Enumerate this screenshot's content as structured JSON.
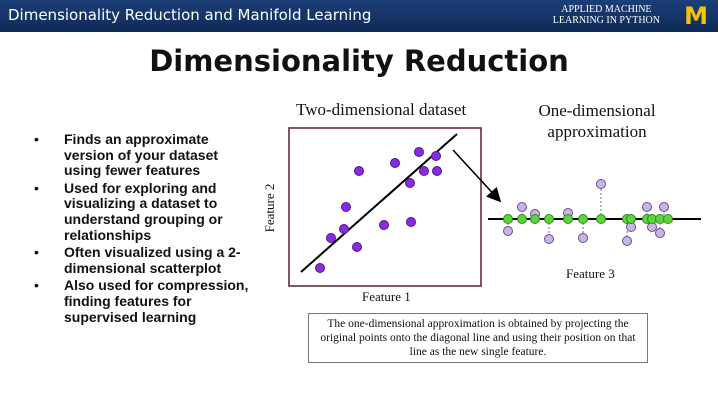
{
  "header": {
    "title": "Dimensionality Reduction and Manifold Learning",
    "course_line1": "APPLIED MACHINE",
    "course_line2": "LEARNING IN PYTHON",
    "logo": "M"
  },
  "slide": {
    "title": "Dimensionality Reduction",
    "bullets": [
      "Finds an approximate version of your dataset using fewer features",
      "Used for exploring and visualizing a dataset to understand grouping or relationships",
      "Often visualized using a 2-dimensional scatterplot",
      "Also used for compression, finding features for supervised learning"
    ],
    "bullet_marker": "•"
  },
  "figure": {
    "left_title": "Two-dimensional dataset",
    "right_title_line1": "One-dimensional",
    "right_title_line2": "approximation",
    "y_label": "Feature 2",
    "x_label": "Feature 1",
    "feature3_label": "Feature 3",
    "caption": "The one-dimensional approximation is obtained by projecting the original points onto the diagonal line and using their position on that line as the new single feature.",
    "colors": {
      "purple": "#8a2be2",
      "lavender": "#c8b6e2",
      "green": "#5ed43c",
      "header": "#14336b",
      "logo": "#f4c400"
    }
  }
}
